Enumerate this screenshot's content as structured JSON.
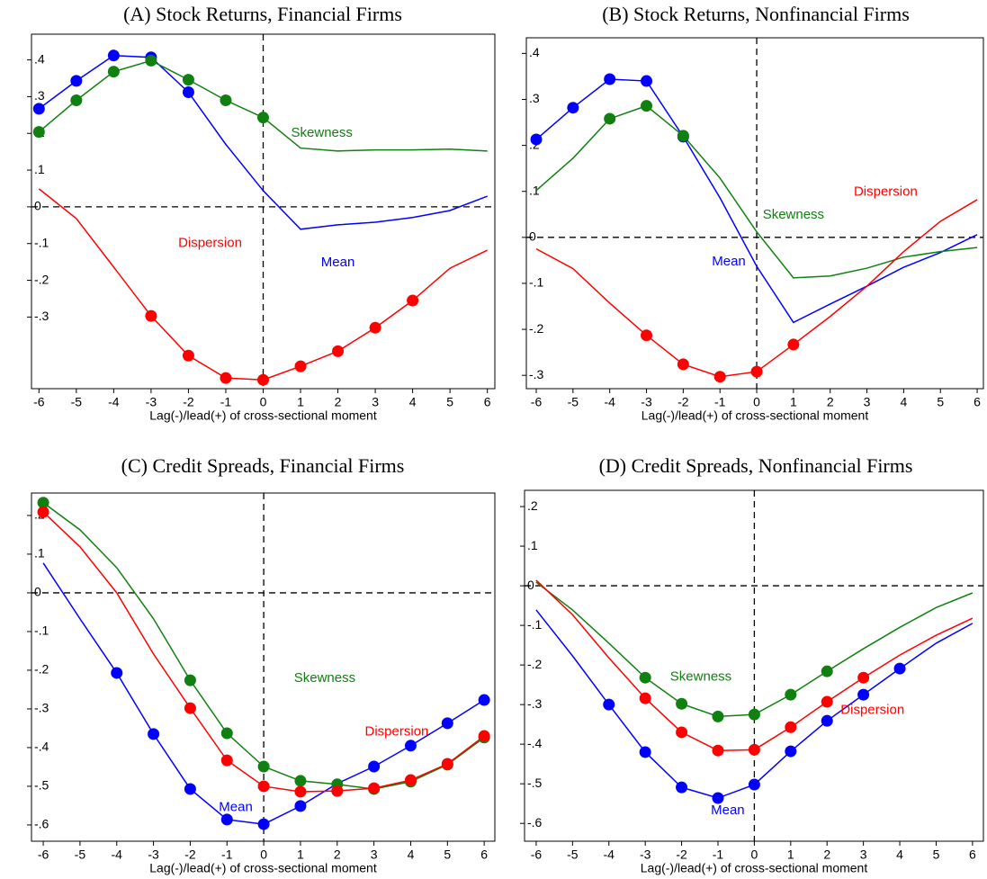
{
  "chart_data": [
    {
      "type": "line",
      "title": "(A) Stock Returns, Financial Firms",
      "x_label": "Lag(-)/lead(+) of cross-sectional moment",
      "x": [
        -6,
        -5,
        -4,
        -3,
        -2,
        -1,
        0,
        1,
        2,
        3,
        4,
        5,
        6
      ],
      "xlim": [
        -6.2,
        6.2
      ],
      "xticks": [
        -6,
        -5,
        -4,
        -3,
        -2,
        -1,
        0,
        1,
        2,
        3,
        4,
        5,
        6
      ],
      "ylim": [
        -0.495,
        0.47
      ],
      "yticks": [
        {
          "value": 0.4,
          "label": ".4"
        },
        {
          "value": 0.3,
          "label": ".3"
        },
        {
          "value": 0.2,
          "label": ".2"
        },
        {
          "value": 0.1,
          "label": ".1"
        },
        0,
        {
          "value": -0.1,
          "label": "-.1"
        },
        {
          "value": -0.2,
          "label": "-.2"
        },
        {
          "value": -0.3,
          "label": "-.3"
        }
      ],
      "reference_lines": {
        "x": 0,
        "y": 0
      },
      "series": [
        {
          "name": "Mean",
          "color": "#0000ff",
          "values": [
            0.267,
            0.343,
            0.412,
            0.407,
            0.312,
            0.17,
            0.044,
            -0.061,
            -0.049,
            -0.042,
            -0.029,
            -0.01,
            0.029
          ],
          "markers": [
            true,
            true,
            true,
            true,
            true,
            false,
            false,
            false,
            false,
            false,
            false,
            false,
            false
          ]
        },
        {
          "name": "Skewness",
          "color": "#108010",
          "values": [
            0.204,
            0.29,
            0.368,
            0.398,
            0.346,
            0.29,
            0.243,
            0.16,
            0.152,
            0.155,
            0.155,
            0.157,
            0.152
          ],
          "markers": [
            true,
            true,
            true,
            true,
            true,
            true,
            true,
            false,
            false,
            false,
            false,
            false,
            false
          ]
        },
        {
          "name": "Dispersion",
          "color": "#ff0000",
          "values": [
            0.049,
            -0.032,
            -0.164,
            -0.297,
            -0.405,
            -0.466,
            -0.471,
            -0.434,
            -0.393,
            -0.329,
            -0.255,
            -0.167,
            -0.118
          ],
          "markers": [
            false,
            false,
            false,
            true,
            true,
            true,
            true,
            true,
            true,
            true,
            true,
            false,
            false
          ]
        }
      ]
    },
    {
      "type": "line",
      "title": "(B) Stock Returns, Nonfinancial Firms",
      "x_label": "Lag(-)/lead(+) of cross-sectional moment",
      "x": [
        -6,
        -5,
        -4,
        -3,
        -2,
        -1,
        0,
        1,
        2,
        3,
        4,
        5,
        6
      ],
      "xlim": [
        -6.27,
        6.17
      ],
      "xticks": [
        -6,
        -5,
        -4,
        -3,
        -2,
        -1,
        0,
        1,
        2,
        3,
        4,
        5,
        6
      ],
      "ylim": [
        -0.329,
        0.434
      ],
      "yticks": [
        {
          "value": 0.4,
          "label": ".4"
        },
        {
          "value": 0.3,
          "label": ".3"
        },
        {
          "value": 0.2,
          "label": ".2"
        },
        {
          "value": 0.1,
          "label": ".1"
        },
        0,
        {
          "value": -0.1,
          "label": "-.1"
        },
        {
          "value": -0.2,
          "label": "-.2"
        },
        {
          "value": -0.3,
          "label": "-.3"
        }
      ],
      "reference_lines": {
        "x": 0,
        "y": 0
      },
      "series": [
        {
          "name": "Mean",
          "color": "#0000ff",
          "values": [
            0.213,
            0.282,
            0.344,
            0.34,
            0.219,
            0.086,
            -0.063,
            -0.185,
            -0.145,
            -0.106,
            -0.065,
            -0.033,
            0.006
          ],
          "markers": [
            true,
            true,
            true,
            true,
            true,
            false,
            false,
            false,
            false,
            false,
            false,
            false,
            false
          ]
        },
        {
          "name": "Skewness",
          "color": "#108010",
          "values": [
            0.102,
            0.172,
            0.258,
            0.286,
            0.221,
            0.129,
            0.012,
            -0.088,
            -0.084,
            -0.067,
            -0.043,
            -0.031,
            -0.022
          ],
          "markers": [
            false,
            false,
            true,
            true,
            true,
            false,
            false,
            false,
            false,
            false,
            false,
            false,
            false
          ]
        },
        {
          "name": "Dispersion",
          "color": "#ff0000",
          "values": [
            -0.025,
            -0.068,
            -0.143,
            -0.213,
            -0.276,
            -0.303,
            -0.292,
            -0.233,
            -0.172,
            -0.106,
            -0.031,
            0.035,
            0.082
          ],
          "markers": [
            false,
            false,
            false,
            true,
            true,
            true,
            true,
            true,
            false,
            false,
            false,
            false,
            false
          ]
        }
      ]
    },
    {
      "type": "line",
      "title": "(C) Credit Spreads, Financial Firms",
      "x_label": "Lag(-)/lead(+) of cross-sectional moment",
      "x": [
        -6,
        -5,
        -4,
        -3,
        -2,
        -1,
        0,
        1,
        2,
        3,
        4,
        5,
        6
      ],
      "xlim": [
        -6.32,
        6.29
      ],
      "xticks": [
        -6,
        -5,
        -4,
        -3,
        -2,
        -1,
        0,
        1,
        2,
        3,
        4,
        5,
        6
      ],
      "ylim": [
        -0.642,
        0.258
      ],
      "yticks": [
        {
          "value": 0.2,
          "label": ".2"
        },
        {
          "value": 0.1,
          "label": ".1"
        },
        0,
        {
          "value": -0.1,
          "label": "-.1"
        },
        {
          "value": -0.2,
          "label": "-.2"
        },
        {
          "value": -0.3,
          "label": "-.3"
        },
        {
          "value": -0.4,
          "label": "-.4"
        },
        {
          "value": -0.5,
          "label": "-.5"
        },
        {
          "value": -0.6,
          "label": "-.6"
        }
      ],
      "reference_lines": {
        "x": 0,
        "y": 0
      },
      "series": [
        {
          "name": "Mean",
          "color": "#0000ff",
          "values": [
            0.077,
            -0.067,
            -0.207,
            -0.365,
            -0.507,
            -0.586,
            -0.598,
            -0.551,
            -0.493,
            -0.449,
            -0.395,
            -0.337,
            -0.277
          ],
          "markers": [
            false,
            false,
            true,
            true,
            true,
            true,
            true,
            true,
            false,
            true,
            true,
            true,
            true
          ]
        },
        {
          "name": "Skewness",
          "color": "#108010",
          "values": [
            0.233,
            0.163,
            0.065,
            -0.067,
            -0.226,
            -0.363,
            -0.449,
            -0.486,
            -0.495,
            -0.507,
            -0.488,
            -0.444,
            -0.374
          ],
          "markers": [
            true,
            false,
            false,
            false,
            true,
            true,
            true,
            true,
            true,
            true,
            true,
            true,
            true
          ]
        },
        {
          "name": "Dispersion",
          "color": "#ff0000",
          "values": [
            0.209,
            0.119,
            0,
            -0.158,
            -0.298,
            -0.433,
            -0.5,
            -0.514,
            -0.512,
            -0.505,
            -0.484,
            -0.442,
            -0.37
          ],
          "markers": [
            true,
            false,
            false,
            false,
            true,
            true,
            true,
            true,
            true,
            true,
            true,
            true,
            true
          ]
        }
      ]
    },
    {
      "type": "line",
      "title": "(D) Credit Spreads, Nonfinancial Firms",
      "x_label": "Lag(-)/lead(+) of cross-sectional moment",
      "x": [
        -6,
        -5,
        -4,
        -3,
        -2,
        -1,
        0,
        1,
        2,
        3,
        4,
        5,
        6
      ],
      "xlim": [
        -6.32,
        6.3
      ],
      "xticks": [
        -6,
        -5,
        -4,
        -3,
        -2,
        -1,
        0,
        1,
        2,
        3,
        4,
        5,
        6
      ],
      "ylim": [
        -0.645,
        0.241
      ],
      "yticks": [
        {
          "value": 0.2,
          "label": ".2"
        },
        {
          "value": 0.1,
          "label": ".1"
        },
        0,
        {
          "value": -0.1,
          "label": "-.1"
        },
        {
          "value": -0.2,
          "label": "-.2"
        },
        {
          "value": -0.3,
          "label": "-.3"
        },
        {
          "value": -0.4,
          "label": "-.4"
        },
        {
          "value": -0.5,
          "label": "-.5"
        },
        {
          "value": -0.6,
          "label": "-.6"
        }
      ],
      "reference_lines": {
        "x": 0,
        "y": 0
      },
      "series": [
        {
          "name": "Mean",
          "color": "#0000ff",
          "values": [
            -0.061,
            -0.177,
            -0.3,
            -0.42,
            -0.509,
            -0.536,
            -0.502,
            -0.418,
            -0.341,
            -0.275,
            -0.209,
            -0.145,
            -0.095
          ],
          "markers": [
            false,
            false,
            true,
            true,
            true,
            true,
            true,
            true,
            true,
            true,
            true,
            false,
            false
          ]
        },
        {
          "name": "Skewness",
          "color": "#108010",
          "values": [
            0.009,
            -0.061,
            -0.145,
            -0.232,
            -0.298,
            -0.33,
            -0.325,
            -0.275,
            -0.216,
            -0.159,
            -0.105,
            -0.055,
            -0.018
          ],
          "markers": [
            false,
            false,
            false,
            true,
            true,
            true,
            true,
            true,
            true,
            false,
            false,
            false,
            false
          ]
        },
        {
          "name": "Dispersion",
          "color": "#ff0000",
          "values": [
            0.014,
            -0.073,
            -0.182,
            -0.284,
            -0.37,
            -0.416,
            -0.414,
            -0.357,
            -0.293,
            -0.232,
            -0.175,
            -0.125,
            -0.082
          ],
          "markers": [
            false,
            false,
            false,
            true,
            true,
            true,
            true,
            true,
            true,
            true,
            false,
            false,
            false
          ]
        }
      ]
    }
  ]
}
